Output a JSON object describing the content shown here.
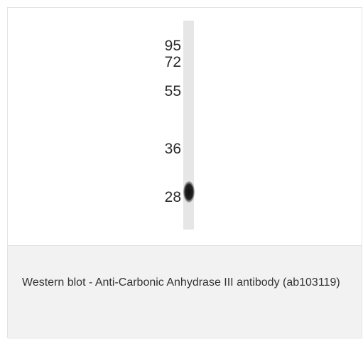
{
  "image": {
    "markers": [
      "95",
      "72",
      "55",
      "36",
      "28"
    ]
  },
  "caption": {
    "text": "Western blot - Anti-Carbonic Anhydrase III antibody (ab103119)"
  }
}
